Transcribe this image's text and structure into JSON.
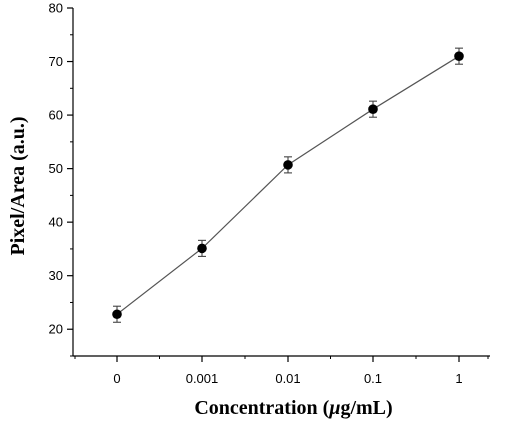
{
  "chart_data": {
    "type": "line",
    "categories": [
      "0",
      "0.001",
      "0.01",
      "0.1",
      "1"
    ],
    "series": [
      {
        "values": [
          22.8,
          35.1,
          50.7,
          61.1,
          71.0
        ],
        "errors": [
          1.5,
          1.5,
          1.5,
          1.5,
          1.5
        ]
      }
    ],
    "xlabel_pre": "Concentration (",
    "xlabel_mu": "μ",
    "xlabel_post": "g/mL)",
    "ylabel": "Pixel/Area (a.u.)",
    "ylim": [
      15,
      80
    ],
    "yticks": [
      20,
      30,
      40,
      50,
      60,
      70,
      80
    ],
    "grid": false,
    "legend": "none",
    "marker": "filled-circle",
    "colors": {
      "line": "#555555",
      "marker": "#000000",
      "axis": "#000000"
    }
  }
}
